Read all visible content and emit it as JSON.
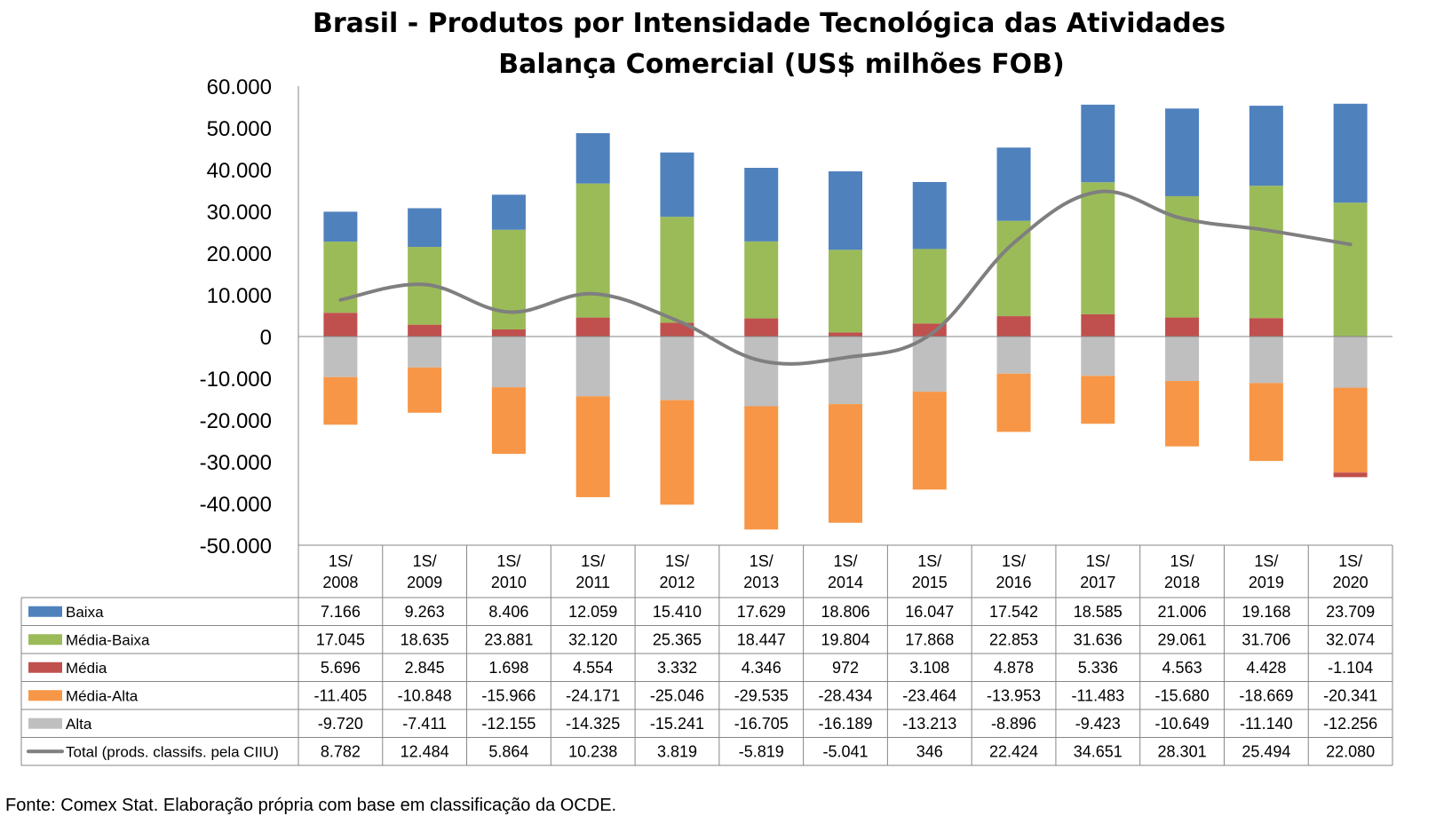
{
  "chart_data": {
    "type": "bar",
    "stacked": true,
    "title": [
      "Brasil - Produtos por Intensidade Tecnológica das Atividades",
      "Balança Comercial (US$ milhões FOB)"
    ],
    "categories": [
      [
        "1S/",
        "2008"
      ],
      [
        "1S/",
        "2009"
      ],
      [
        "1S/",
        "2010"
      ],
      [
        "1S/",
        "2011"
      ],
      [
        "1S/",
        "2012"
      ],
      [
        "1S/",
        "2013"
      ],
      [
        "1S/",
        "2014"
      ],
      [
        "1S/",
        "2015"
      ],
      [
        "1S/",
        "2016"
      ],
      [
        "1S/",
        "2017"
      ],
      [
        "1S/",
        "2018"
      ],
      [
        "1S/",
        "2019"
      ],
      [
        "1S/",
        "2020"
      ]
    ],
    "ylim": [
      -50000,
      60000
    ],
    "yticks": [
      60000,
      50000,
      40000,
      30000,
      20000,
      10000,
      0,
      -10000,
      -20000,
      -30000,
      -40000,
      -50000
    ],
    "ytick_labels": [
      "60.000",
      "50.000",
      "40.000",
      "30.000",
      "20.000",
      "10.000",
      "0",
      "-10.000",
      "-20.000",
      "-30.000",
      "-40.000",
      "-50.000"
    ],
    "series": [
      {
        "name": "Baixa",
        "kind": "bar",
        "color": "#4f81bd",
        "values": [
          7166,
          9263,
          8406,
          12059,
          15410,
          17629,
          18806,
          16047,
          17542,
          18585,
          21006,
          19168,
          23709
        ],
        "labels": [
          "7.166",
          "9.263",
          "8.406",
          "12.059",
          "15.410",
          "17.629",
          "18.806",
          "16.047",
          "17.542",
          "18.585",
          "21.006",
          "19.168",
          "23.709"
        ]
      },
      {
        "name": "Média-Baixa",
        "kind": "bar",
        "color": "#9bbb59",
        "values": [
          17045,
          18635,
          23881,
          32120,
          25365,
          18447,
          19804,
          17868,
          22853,
          31636,
          29061,
          31706,
          32074
        ],
        "labels": [
          "17.045",
          "18.635",
          "23.881",
          "32.120",
          "25.365",
          "18.447",
          "19.804",
          "17.868",
          "22.853",
          "31.636",
          "29.061",
          "31.706",
          "32.074"
        ]
      },
      {
        "name": "Média",
        "kind": "bar",
        "color": "#c0504d",
        "values": [
          5696,
          2845,
          1698,
          4554,
          3332,
          4346,
          972,
          3108,
          4878,
          5336,
          4563,
          4428,
          -1104
        ],
        "labels": [
          "5.696",
          "2.845",
          "1.698",
          "4.554",
          "3.332",
          "4.346",
          "972",
          "3.108",
          "4.878",
          "5.336",
          "4.563",
          "4.428",
          "-1.104"
        ]
      },
      {
        "name": "Média-Alta",
        "kind": "bar",
        "color": "#f79646",
        "values": [
          -11405,
          -10848,
          -15966,
          -24171,
          -25046,
          -29535,
          -28434,
          -23464,
          -13953,
          -11483,
          -15680,
          -18669,
          -20341
        ],
        "labels": [
          "-11.405",
          "-10.848",
          "-15.966",
          "-24.171",
          "-25.046",
          "-29.535",
          "-28.434",
          "-23.464",
          "-13.953",
          "-11.483",
          "-15.680",
          "-18.669",
          "-20.341"
        ]
      },
      {
        "name": "Alta",
        "kind": "bar",
        "color": "#bfbfbf",
        "values": [
          -9720,
          -7411,
          -12155,
          -14325,
          -15241,
          -16705,
          -16189,
          -13213,
          -8896,
          -9423,
          -10649,
          -11140,
          -12256
        ],
        "labels": [
          "-9.720",
          "-7.411",
          "-12.155",
          "-14.325",
          "-15.241",
          "-16.705",
          "-16.189",
          "-13.213",
          "-8.896",
          "-9.423",
          "-10.649",
          "-11.140",
          "-12.256"
        ]
      },
      {
        "name": "Total (prods. classifs. pela CIIU)",
        "kind": "line",
        "color": "#7f7f7f",
        "values": [
          8782,
          12484,
          5864,
          10238,
          3819,
          -5819,
          -5041,
          346,
          22424,
          34651,
          28301,
          25494,
          22080
        ],
        "labels": [
          "8.782",
          "12.484",
          "5.864",
          "10.238",
          "3.819",
          "-5.819",
          "-5.041",
          "346",
          "22.424",
          "34.651",
          "28.301",
          "25.494",
          "22.080"
        ]
      }
    ],
    "stack_order_positive": [
      "Média",
      "Média-Baixa",
      "Baixa"
    ],
    "stack_order_negative": [
      "Alta",
      "Média-Alta",
      "Média"
    ],
    "legend": "data-table"
  },
  "source": "Fonte: Comex Stat. Elaboração própria com base em classificação da OCDE."
}
